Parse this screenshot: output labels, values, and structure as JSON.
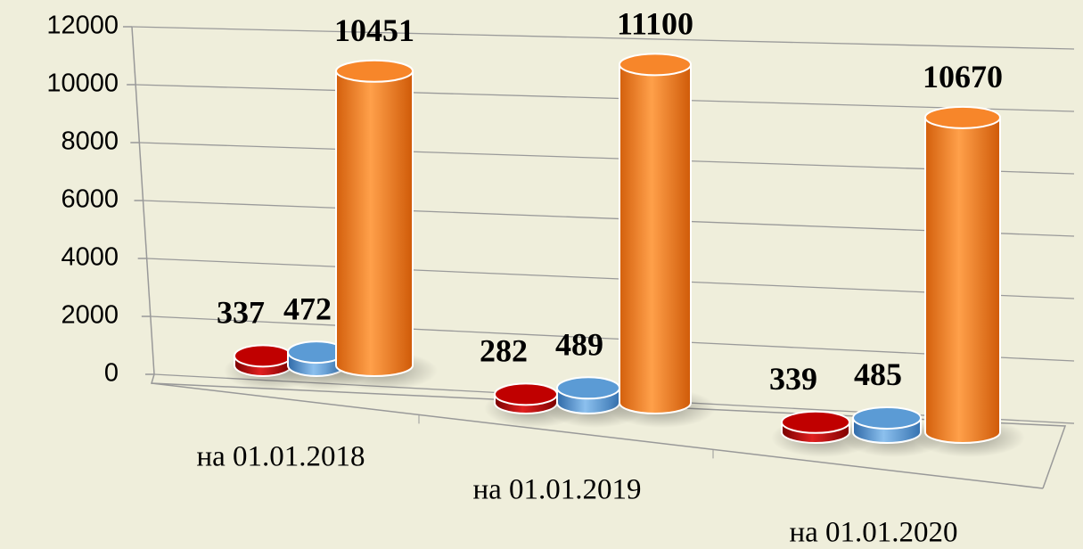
{
  "chart_data": {
    "type": "bar",
    "categories": [
      "на 01.01.2018",
      "на 01.01.2019",
      "на 01.01.2020"
    ],
    "series": [
      {
        "color": "#c00000",
        "values": [
          337,
          282,
          339
        ]
      },
      {
        "color": "#5b9bd5",
        "values": [
          472,
          489,
          485
        ]
      },
      {
        "color": "#f7862a",
        "values": [
          10451,
          11100,
          10670
        ]
      }
    ],
    "ylim": [
      0,
      12000
    ],
    "yticks": [
      0,
      2000,
      4000,
      6000,
      8000,
      10000,
      12000
    ],
    "grid": true
  }
}
